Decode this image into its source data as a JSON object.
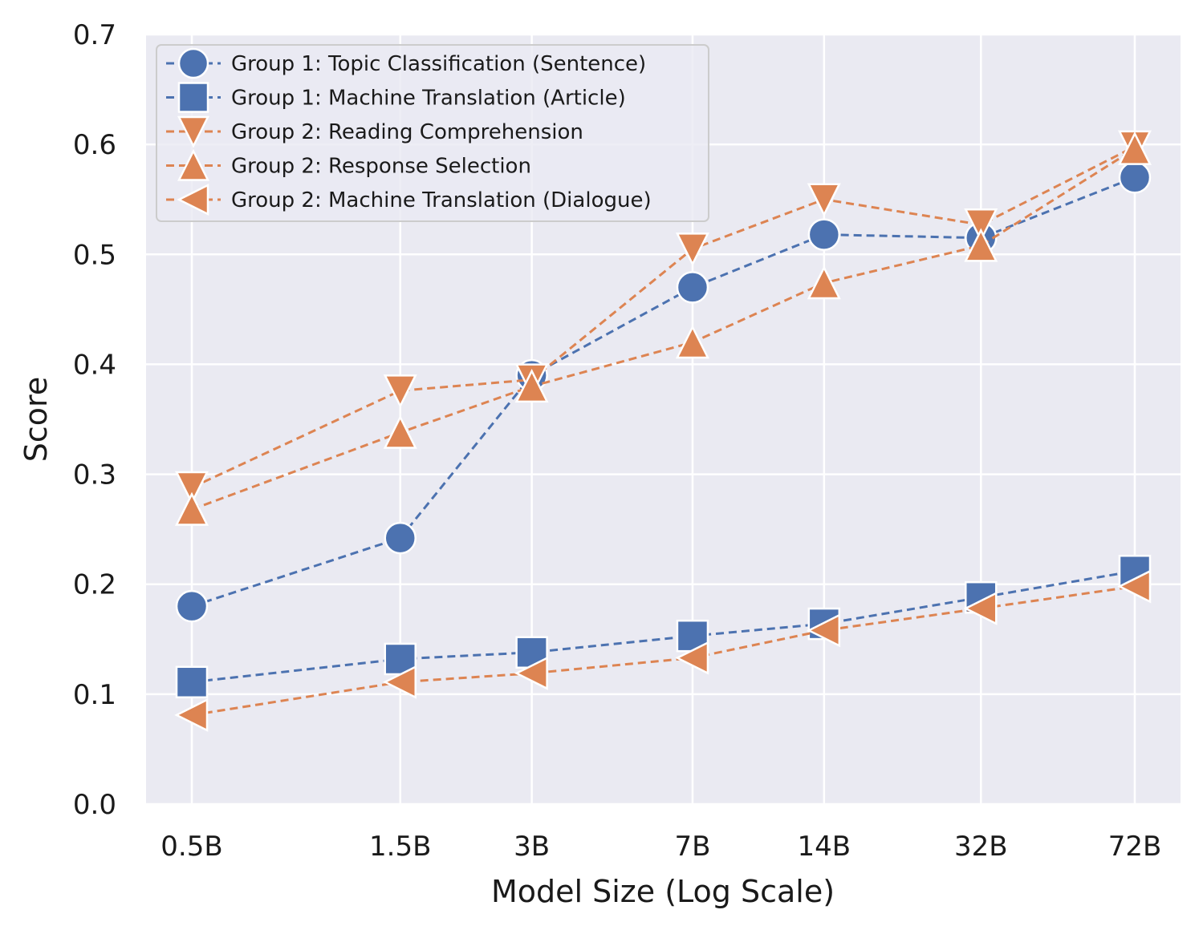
{
  "chart_data": {
    "type": "line",
    "title": "",
    "xlabel": "Model Size (Log Scale)",
    "ylabel": "Score",
    "x_scale": "log",
    "categories": [
      "0.5B",
      "1.5B",
      "3B",
      "7B",
      "14B",
      "32B",
      "72B"
    ],
    "x": [
      0.5,
      1.5,
      3,
      7,
      14,
      32,
      72
    ],
    "ylim": [
      0.0,
      0.7
    ],
    "yticks": [
      0.0,
      0.1,
      0.2,
      0.3,
      0.4,
      0.5,
      0.6,
      0.7
    ],
    "ytick_labels": [
      "0.0",
      "0.1",
      "0.2",
      "0.3",
      "0.4",
      "0.5",
      "0.6",
      "0.7"
    ],
    "grid": true,
    "legend_position": "top-left",
    "series": [
      {
        "name": "Group 1: Topic Classification (Sentence)",
        "marker": "circle",
        "color": "#4C72B0",
        "values": [
          0.18,
          0.242,
          0.39,
          0.47,
          0.518,
          0.515,
          0.57
        ]
      },
      {
        "name": "Group 1: Machine Translation (Article)",
        "marker": "square",
        "color": "#4C72B0",
        "values": [
          0.111,
          0.132,
          0.138,
          0.153,
          0.164,
          0.188,
          0.212
        ]
      },
      {
        "name": "Group 2: Reading Comprehension",
        "marker": "triangle-down",
        "color": "#DD8452",
        "values": [
          0.288,
          0.376,
          0.386,
          0.505,
          0.55,
          0.527,
          0.598
        ]
      },
      {
        "name": "Group 2: Response Selection",
        "marker": "triangle-up",
        "color": "#DD8452",
        "values": [
          0.268,
          0.338,
          0.38,
          0.42,
          0.474,
          0.508,
          0.596
        ]
      },
      {
        "name": "Group 2: Machine Translation (Dialogue)",
        "marker": "triangle-left",
        "color": "#DD8452",
        "values": [
          0.081,
          0.111,
          0.119,
          0.133,
          0.158,
          0.178,
          0.198
        ]
      }
    ]
  }
}
